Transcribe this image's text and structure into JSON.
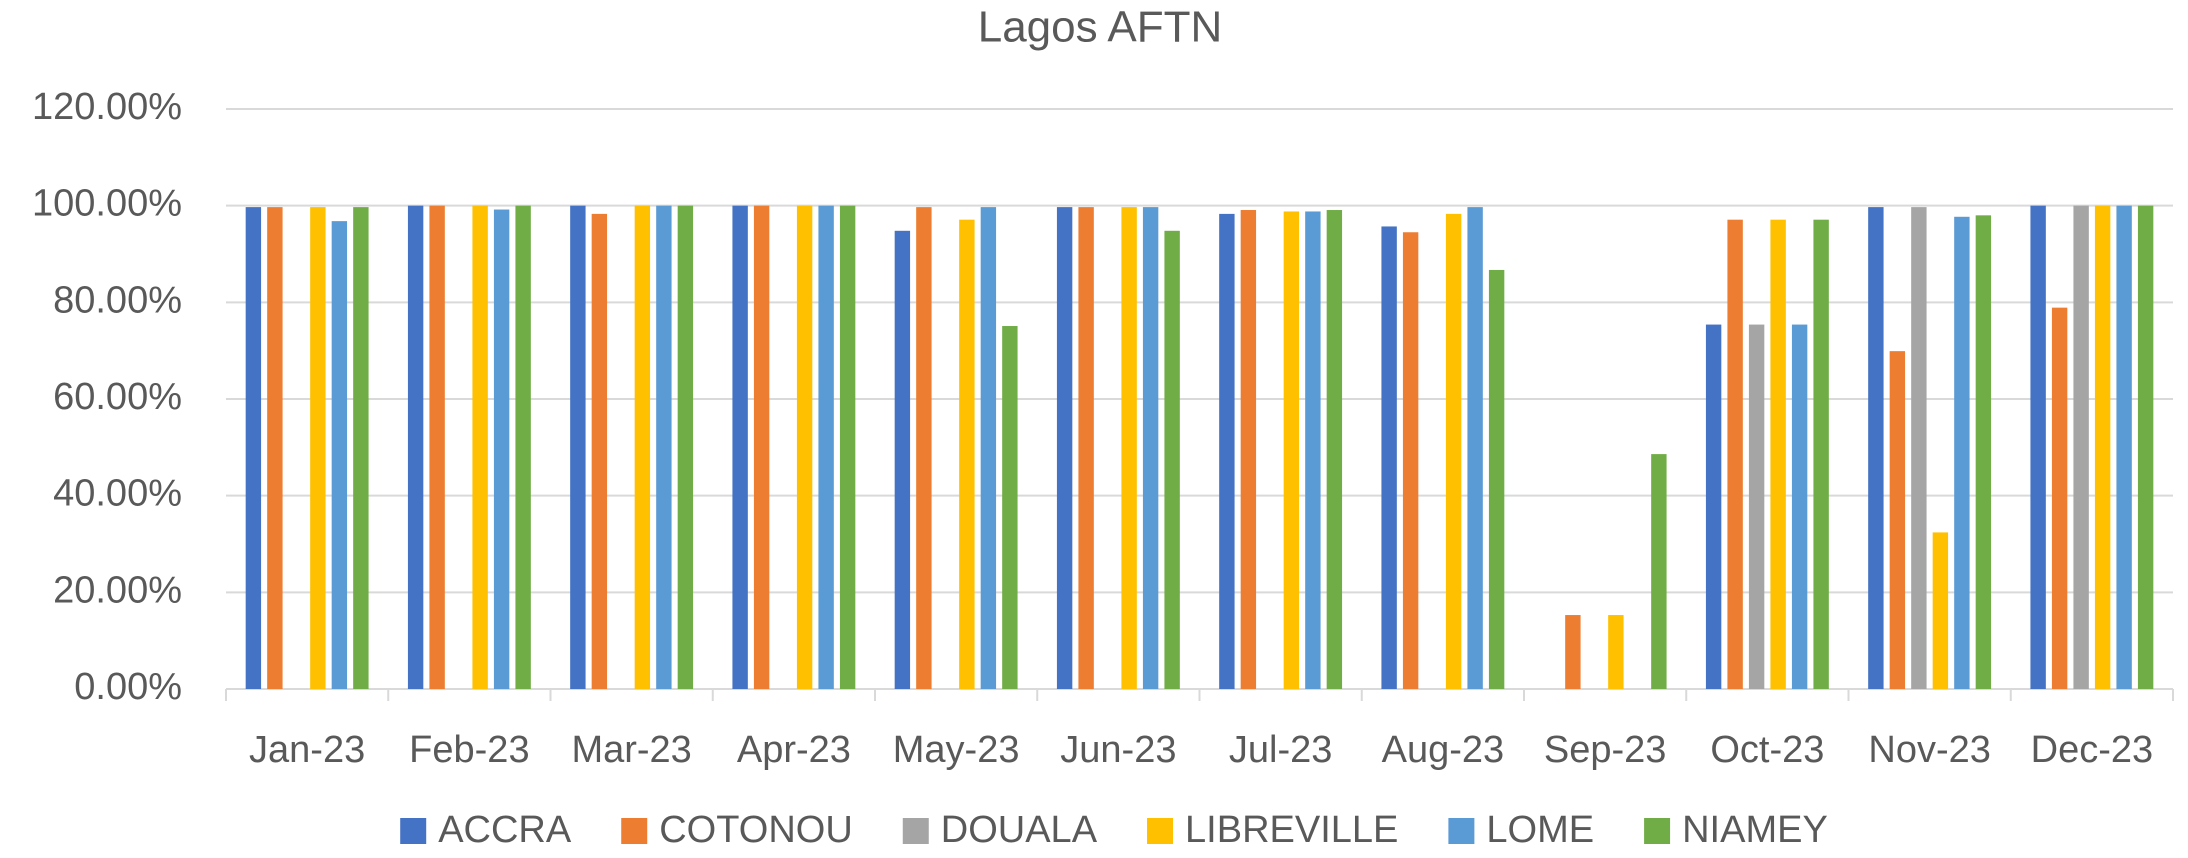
{
  "chart_data": {
    "type": "bar",
    "title": "Lagos AFTN",
    "categories": [
      "Jan-23",
      "Feb-23",
      "Mar-23",
      "Apr-23",
      "May-23",
      "Jun-23",
      "Jul-23",
      "Aug-23",
      "Sep-23",
      "Oct-23",
      "Nov-23",
      "Dec-23"
    ],
    "series": [
      {
        "name": "ACCRA",
        "color": "#4472c4",
        "values": [
          99.7,
          100,
          100,
          100,
          94.8,
          99.7,
          98.3,
          95.7,
          0,
          75.4,
          99.7,
          100
        ]
      },
      {
        "name": "COTONOU",
        "color": "#ed7d31",
        "values": [
          99.7,
          100,
          98.3,
          100,
          99.7,
          99.7,
          99.1,
          94.5,
          15.3,
          97.1,
          69.9,
          78.9
        ]
      },
      {
        "name": "DOUALA",
        "color": "#a5a5a5",
        "values": [
          0,
          0,
          0,
          0,
          0,
          0,
          0,
          0,
          0,
          75.4,
          99.7,
          100
        ]
      },
      {
        "name": "LIBREVILLE",
        "color": "#ffc000",
        "values": [
          99.7,
          100,
          100,
          100,
          97.1,
          99.7,
          98.8,
          98.3,
          15.3,
          97.1,
          32.4,
          100
        ]
      },
      {
        "name": "LOME",
        "color": "#5b9bd5",
        "values": [
          96.8,
          99.2,
          100,
          100,
          99.7,
          99.7,
          98.8,
          99.7,
          0,
          75.4,
          97.7,
          100
        ]
      },
      {
        "name": "NIAMEY",
        "color": "#70ad47",
        "values": [
          99.7,
          100,
          100,
          100,
          75.1,
          94.8,
          99.1,
          86.7,
          48.6,
          97.1,
          98,
          100
        ]
      }
    ],
    "ylim": [
      0,
      120
    ],
    "yticks": [
      {
        "value": 0,
        "label": "0.00%"
      },
      {
        "value": 20,
        "label": "20.00%"
      },
      {
        "value": 40,
        "label": "40.00%"
      },
      {
        "value": 60,
        "label": "60.00%"
      },
      {
        "value": 80,
        "label": "80.00%"
      },
      {
        "value": 100,
        "label": "100.00%"
      },
      {
        "value": 120,
        "label": "120.00%"
      }
    ],
    "grid": true,
    "legend": "bottom"
  }
}
